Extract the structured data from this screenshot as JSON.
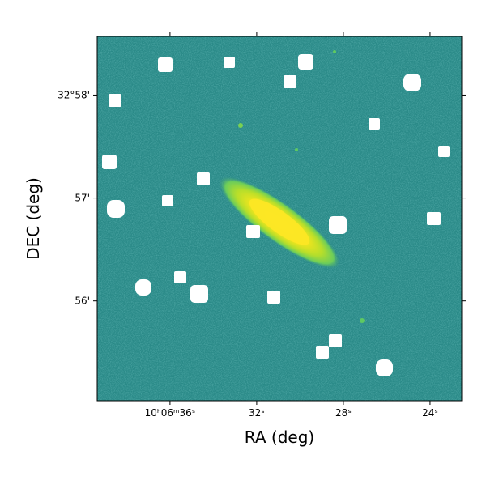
{
  "chart_data": {
    "type": "image",
    "xlabel": "RA (deg)",
    "ylabel": "DEC (deg)",
    "xlim": [
      39.36,
      22.54
    ],
    "xticks": [
      {
        "value": 36,
        "label": "10ʰ06ᵐ36ˢ"
      },
      {
        "value": 32,
        "label": "32ˢ"
      },
      {
        "value": 28,
        "label": "28ˢ"
      },
      {
        "value": 24,
        "label": "24ˢ"
      }
    ],
    "ylim": [
      55.03,
      58.57
    ],
    "yticks": [
      {
        "value": 58,
        "label": "32°58'"
      },
      {
        "value": 57,
        "label": "57'"
      },
      {
        "value": 56,
        "label": "56'"
      }
    ]
  }
}
